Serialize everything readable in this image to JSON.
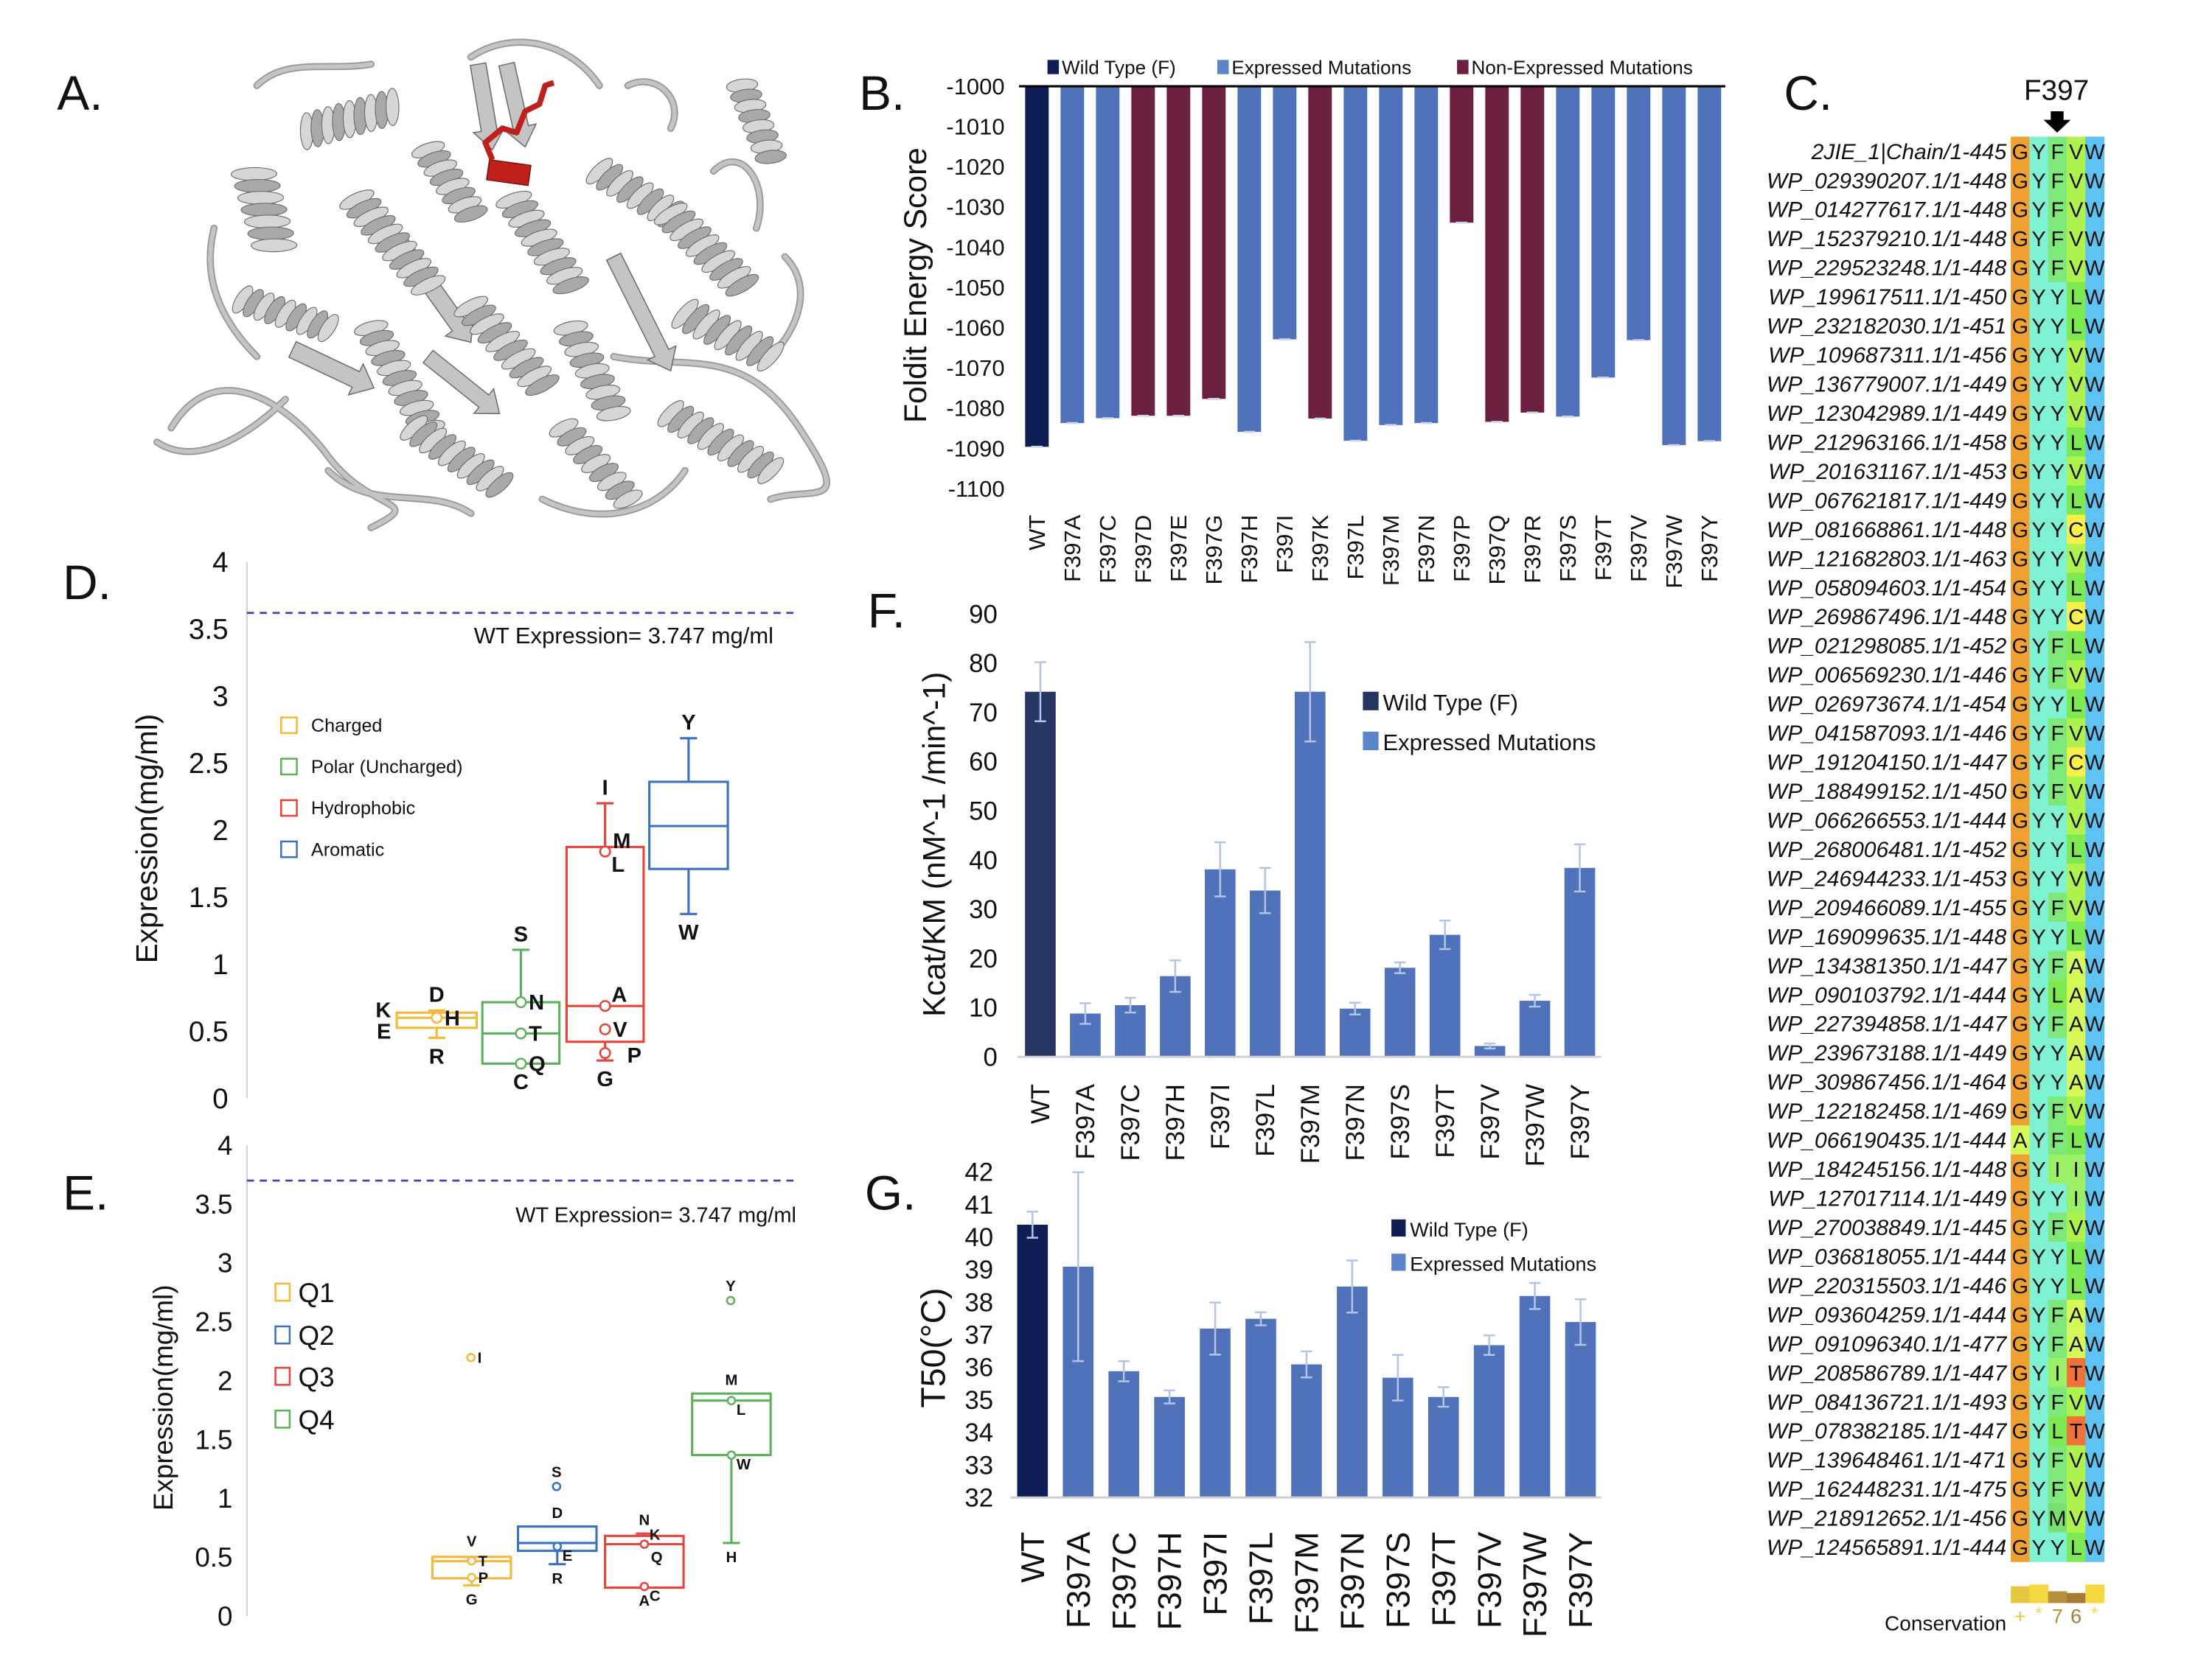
{
  "panel_labels": {
    "A": "A.",
    "B": "B.",
    "C": "C.",
    "D": "D.",
    "E": "E.",
    "F": "F.",
    "G": "G."
  },
  "structure": {
    "protein_color": "#c4c4c4",
    "highlight_color": "#c0201a"
  },
  "alignment": {
    "marker_label": "F397",
    "marker_column": 3,
    "residue_colors": {
      "G": "#f0a030",
      "Y": "#7ef2d2",
      "F": "#7ee87a",
      "V": "#aef24e",
      "L": "#7eea52",
      "C": "#f8f048",
      "A": "#d6f858",
      "T": "#f07238",
      "I": "#9cf066",
      "M": "#78e070",
      "W": "#5ec2f2"
    },
    "rows": [
      {
        "name": "2JIE_1|Chain/1-445",
        "residues": "GYFVW"
      },
      {
        "name": "WP_029390207.1/1-448",
        "residues": "GYFVW"
      },
      {
        "name": "WP_014277617.1/1-448",
        "residues": "GYFVW"
      },
      {
        "name": "WP_152379210.1/1-448",
        "residues": "GYFVW"
      },
      {
        "name": "WP_229523248.1/1-448",
        "residues": "GYFVW"
      },
      {
        "name": "WP_199617511.1/1-450",
        "residues": "GYYLW"
      },
      {
        "name": "WP_232182030.1/1-451",
        "residues": "GYYLW"
      },
      {
        "name": "WP_109687311.1/1-456",
        "residues": "GYYVW"
      },
      {
        "name": "WP_136779007.1/1-449",
        "residues": "GYYVW"
      },
      {
        "name": "WP_123042989.1/1-449",
        "residues": "GYYVW"
      },
      {
        "name": "WP_212963166.1/1-458",
        "residues": "GYYLW"
      },
      {
        "name": "WP_201631167.1/1-453",
        "residues": "GYYVW"
      },
      {
        "name": "WP_067621817.1/1-449",
        "residues": "GYYLW"
      },
      {
        "name": "WP_081668861.1/1-448",
        "residues": "GYYCW"
      },
      {
        "name": "WP_121682803.1/1-463",
        "residues": "GYYVW"
      },
      {
        "name": "WP_058094603.1/1-454",
        "residues": "GYYLW"
      },
      {
        "name": "WP_269867496.1/1-448",
        "residues": "GYYCW"
      },
      {
        "name": "WP_021298085.1/1-452",
        "residues": "GYFLW"
      },
      {
        "name": "WP_006569230.1/1-446",
        "residues": "GYFVW"
      },
      {
        "name": "WP_026973674.1/1-454",
        "residues": "GYYLW"
      },
      {
        "name": "WP_041587093.1/1-446",
        "residues": "GYFVW"
      },
      {
        "name": "WP_191204150.1/1-447",
        "residues": "GYFCW"
      },
      {
        "name": "WP_188499152.1/1-450",
        "residues": "GYFVW"
      },
      {
        "name": "WP_066266553.1/1-444",
        "residues": "GYYVW"
      },
      {
        "name": "WP_268006481.1/1-452",
        "residues": "GYYLW"
      },
      {
        "name": "WP_246944233.1/1-453",
        "residues": "GYYVW"
      },
      {
        "name": "WP_209466089.1/1-455",
        "residues": "GYFVW"
      },
      {
        "name": "WP_169099635.1/1-448",
        "residues": "GYYLW"
      },
      {
        "name": "WP_134381350.1/1-447",
        "residues": "GYFAW"
      },
      {
        "name": "WP_090103792.1/1-444",
        "residues": "GYLAW"
      },
      {
        "name": "WP_227394858.1/1-447",
        "residues": "GYFAW"
      },
      {
        "name": "WP_239673188.1/1-449",
        "residues": "GYYAW"
      },
      {
        "name": "WP_309867456.1/1-464",
        "residues": "GYYAW"
      },
      {
        "name": "WP_122182458.1/1-469",
        "residues": "GYFVW"
      },
      {
        "name": "WP_066190435.1/1-444",
        "residues": "AYFLW"
      },
      {
        "name": "WP_184245156.1/1-448",
        "residues": "GYIIW"
      },
      {
        "name": "WP_127017114.1/1-449",
        "residues": "GYYIW"
      },
      {
        "name": "WP_270038849.1/1-445",
        "residues": "GYFVW"
      },
      {
        "name": "WP_036818055.1/1-444",
        "residues": "GYYLW"
      },
      {
        "name": "WP_220315503.1/1-446",
        "residues": "GYYLW"
      },
      {
        "name": "WP_093604259.1/1-444",
        "residues": "GYFAW"
      },
      {
        "name": "WP_091096340.1/1-477",
        "residues": "GYFAW"
      },
      {
        "name": "WP_208586789.1/1-447",
        "residues": "GYITW"
      },
      {
        "name": "WP_084136721.1/1-493",
        "residues": "GYFVW"
      },
      {
        "name": "WP_078382185.1/1-447",
        "residues": "GYLTW"
      },
      {
        "name": "WP_139648461.1/1-471",
        "residues": "GYFVW"
      },
      {
        "name": "WP_162448231.1/1-475",
        "residues": "GYFVW"
      },
      {
        "name": "WP_218912652.1/1-456",
        "residues": "GYMVW"
      },
      {
        "name": "WP_124565891.1/1-444",
        "residues": "GYYLW"
      }
    ],
    "conservation": {
      "label": "Conservation",
      "symbols": [
        "+",
        "*",
        "7",
        "6",
        "*"
      ],
      "levels": [
        10,
        11,
        7,
        6,
        11
      ],
      "colors": [
        "#e8c840",
        "#f5d840",
        "#b8903a",
        "#a87c30",
        "#f5d840"
      ]
    }
  },
  "chart_data": [
    {
      "id": "B",
      "type": "bar",
      "ylabel": "Foldit Energy Score",
      "ylim": [
        -1100,
        -1000
      ],
      "yticks": [
        -1000,
        -1010,
        -1020,
        -1030,
        -1040,
        -1050,
        -1060,
        -1070,
        -1080,
        -1090,
        -1100
      ],
      "legend": [
        {
          "name": "Wild Type (F)",
          "color": "#0f1f55"
        },
        {
          "name": "Expressed Mutations",
          "color": "#5072bb"
        },
        {
          "name": "Non-Expressed Mutations",
          "color": "#6b2040"
        }
      ],
      "legend_position": "top",
      "categories": [
        "WT",
        "F397A",
        "F397C",
        "F397D",
        "F397E",
        "F397G",
        "F397H",
        "F397I",
        "F397K",
        "F397L",
        "F397M",
        "F397N",
        "F397P",
        "F397Q",
        "F397R",
        "F397S",
        "F397T",
        "F397V",
        "F397W",
        "F397Y"
      ],
      "groups": [
        0,
        1,
        1,
        2,
        2,
        2,
        1,
        1,
        2,
        1,
        1,
        1,
        2,
        2,
        2,
        1,
        1,
        1,
        1,
        1
      ],
      "values": [
        -1089.6,
        -1083.7,
        -1082.5,
        -1081.9,
        -1081.9,
        -1077.7,
        -1085.9,
        -1062.9,
        -1082.6,
        -1088.1,
        -1084.2,
        -1083.7,
        -1033.9,
        -1083.4,
        -1081.1,
        -1082.1,
        -1072.4,
        -1063.1,
        -1089.2,
        -1088.2
      ]
    },
    {
      "id": "D",
      "type": "box",
      "ylabel": "Expression(mg/ml)",
      "ylim": [
        0,
        4
      ],
      "yticks": [
        "0",
        "0.5",
        "1",
        "1.5",
        "2",
        "2.5",
        "3",
        "3.5",
        "4"
      ],
      "reference_line": {
        "value": 3.747,
        "label": "WT Expression= 3.747 mg/ml",
        "color": "#4a3fb0"
      },
      "series": [
        {
          "name": "Charged",
          "color": "#f5b93a",
          "q1": 0.525,
          "median": 0.6,
          "q3": 0.638,
          "whisker_low": 0.45,
          "whisker_high": 0.654,
          "points": [
            {
              "label": "K",
              "value": 0.66,
              "side": "left"
            },
            {
              "label": "E",
              "value": 0.5,
              "side": "left"
            },
            {
              "label": "D",
              "value": 0.654,
              "side": "above"
            },
            {
              "label": "H",
              "value": 0.6,
              "side": "right",
              "marker": true
            },
            {
              "label": "R",
              "value": 0.45,
              "side": "below"
            }
          ]
        },
        {
          "name": "Polar (Uncharged)",
          "color": "#5cb25c",
          "q1": 0.258,
          "median": 0.483,
          "q3": 0.716,
          "whisker_low": 0.258,
          "whisker_high": 1.107,
          "points": [
            {
              "label": "S",
              "value": 1.107,
              "side": "above"
            },
            {
              "label": "N",
              "value": 0.716,
              "side": "right",
              "marker": true
            },
            {
              "label": "T",
              "value": 0.483,
              "side": "right",
              "marker": true
            },
            {
              "label": "Q",
              "value": 0.258,
              "side": "right",
              "marker": true
            },
            {
              "label": "C",
              "value": 0.258,
              "side": "below"
            }
          ]
        },
        {
          "name": "Hydrophobic",
          "color": "#e8433a",
          "q1": 0.421,
          "median": 0.688,
          "q3": 1.874,
          "whisker_low": 0.281,
          "whisker_high": 2.2,
          "points": [
            {
              "label": "I",
              "value": 2.2,
              "side": "above"
            },
            {
              "label": "M",
              "value": 1.92,
              "side": "right"
            },
            {
              "label": "L",
              "value": 1.84,
              "side": "right-below",
              "marker": true
            },
            {
              "label": "A",
              "value": 0.688,
              "side": "right-above",
              "marker": true
            },
            {
              "label": "V",
              "value": 0.514,
              "side": "right",
              "marker": true
            },
            {
              "label": "P",
              "value": 0.337,
              "side": "right-far",
              "marker": true
            },
            {
              "label": "G",
              "value": 0.281,
              "side": "below"
            }
          ]
        },
        {
          "name": "Aromatic",
          "color": "#3a72c4",
          "q1": 1.71,
          "median": 2.03,
          "q3": 2.36,
          "whisker_low": 1.374,
          "whisker_high": 2.685,
          "points": [
            {
              "label": "Y",
              "value": 2.685,
              "side": "above"
            },
            {
              "label": "W",
              "value": 1.374,
              "side": "below"
            }
          ]
        }
      ]
    },
    {
      "id": "E",
      "type": "box",
      "ylabel": "Expression(mg/ml)",
      "ylim": [
        0,
        4
      ],
      "yticks": [
        "0",
        "0.5",
        "1",
        "1.5",
        "2",
        "2.5",
        "3",
        "3.5",
        "4"
      ],
      "reference_line": {
        "value": 3.747,
        "label": "WT Expression= 3.747 mg/ml",
        "color": "#4a3fb0"
      },
      "series": [
        {
          "name": "Q1",
          "color": "#f5b93a",
          "q1": 0.32,
          "median": 0.465,
          "q3": 0.502,
          "whisker_low": 0.26,
          "whisker_high": 0.502,
          "points": [
            {
              "label": "V",
              "value": 0.52,
              "side": "above"
            },
            {
              "label": "T",
              "value": 0.468,
              "side": "right",
              "marker": true
            },
            {
              "label": "P",
              "value": 0.326,
              "side": "right",
              "marker": true
            },
            {
              "label": "G",
              "value": 0.26,
              "side": "below"
            },
            {
              "label": "I",
              "value": 2.196,
              "side": "right",
              "marker": true,
              "outlier": true
            }
          ]
        },
        {
          "name": "Q2",
          "color": "#3a72c4",
          "q1": 0.553,
          "median": 0.62,
          "q3": 0.76,
          "whisker_low": 0.44,
          "whisker_high": 0.76,
          "points": [
            {
              "label": "S",
              "value": 1.1,
              "side": "above",
              "marker": true,
              "outlier": true
            },
            {
              "label": "D",
              "value": 0.76,
              "side": "above"
            },
            {
              "label": "E",
              "value": 0.59,
              "side": "right-below",
              "marker": true
            },
            {
              "label": "R",
              "value": 0.44,
              "side": "below"
            }
          ]
        },
        {
          "name": "Q3",
          "color": "#e8433a",
          "q1": 0.24,
          "median": 0.61,
          "q3": 0.68,
          "whisker_low": 0.24,
          "whisker_high": 0.7,
          "points": [
            {
              "label": "N",
              "value": 0.7,
              "side": "above"
            },
            {
              "label": "K",
              "value": 0.61,
              "side": "right-above",
              "marker": true
            },
            {
              "label": "Q",
              "value": 0.5,
              "side": "right"
            },
            {
              "label": "C",
              "value": 0.25,
              "side": "right-below",
              "marker": true
            },
            {
              "label": "A",
              "value": 0.25,
              "side": "below"
            }
          ]
        },
        {
          "name": "Q4",
          "color": "#5cb25c",
          "q1": 1.367,
          "median": 1.83,
          "q3": 1.89,
          "whisker_low": 0.62,
          "whisker_high": 1.89,
          "points": [
            {
              "label": "Y",
              "value": 2.68,
              "side": "above",
              "marker": true,
              "outlier": true
            },
            {
              "label": "M",
              "value": 1.89,
              "side": "above"
            },
            {
              "label": "L",
              "value": 1.83,
              "side": "right-below",
              "marker": true
            },
            {
              "label": "W",
              "value": 1.367,
              "side": "right-below",
              "marker": true
            },
            {
              "label": "H",
              "value": 0.62,
              "side": "below"
            }
          ]
        }
      ]
    },
    {
      "id": "F",
      "type": "bar",
      "ylabel": "Kcat/KM (nM^-1 /min^-1)",
      "ylim": [
        0,
        90
      ],
      "yticks": [
        0,
        10,
        20,
        30,
        40,
        50,
        60,
        70,
        80,
        90
      ],
      "legend": [
        {
          "name": "Wild Type (F)",
          "color": "#263562"
        },
        {
          "name": "Expressed Mutations",
          "color": "#5072bb"
        }
      ],
      "legend_position": "top-right",
      "categories": [
        "WT",
        "F397A",
        "F397C",
        "F397H",
        "F397I",
        "F397L",
        "F397M",
        "F397N",
        "F397S",
        "F397T",
        "F397V",
        "F397W",
        "F397Y"
      ],
      "groups": [
        0,
        1,
        1,
        1,
        1,
        1,
        1,
        1,
        1,
        1,
        1,
        1,
        1
      ],
      "values": [
        74.2,
        8.8,
        10.5,
        16.4,
        38.1,
        33.8,
        74.2,
        9.8,
        18.1,
        24.8,
        2.2,
        11.4,
        38.4
      ],
      "errors": [
        6.0,
        2.1,
        1.5,
        3.2,
        5.5,
        4.6,
        10.1,
        1.2,
        1.1,
        2.9,
        0.5,
        1.2,
        4.8
      ]
    },
    {
      "id": "G",
      "type": "bar",
      "ylabel": "T50(°C)",
      "ylim": [
        32,
        42
      ],
      "yticks": [
        32,
        33,
        34,
        35,
        36,
        37,
        38,
        39,
        40,
        41,
        42
      ],
      "legend": [
        {
          "name": "Wild Type (F)",
          "color": "#0f1f55"
        },
        {
          "name": "Expressed Mutations",
          "color": "#5072bb"
        }
      ],
      "legend_position": "top-right",
      "categories": [
        "WT",
        "F397A",
        "F397C",
        "F397H",
        "F397I",
        "F397L",
        "F397M",
        "F397N",
        "F397S",
        "F397T",
        "F397V",
        "F397W",
        "F397Y"
      ],
      "groups": [
        0,
        1,
        1,
        1,
        1,
        1,
        1,
        1,
        1,
        1,
        1,
        1,
        1
      ],
      "values": [
        40.38,
        39.09,
        35.88,
        35.09,
        37.19,
        37.49,
        36.09,
        38.48,
        35.68,
        35.09,
        36.68,
        38.19,
        37.39
      ],
      "errors": [
        0.4,
        2.9,
        0.31,
        0.2,
        0.8,
        0.2,
        0.4,
        0.8,
        0.7,
        0.3,
        0.3,
        0.4,
        0.7
      ]
    }
  ]
}
